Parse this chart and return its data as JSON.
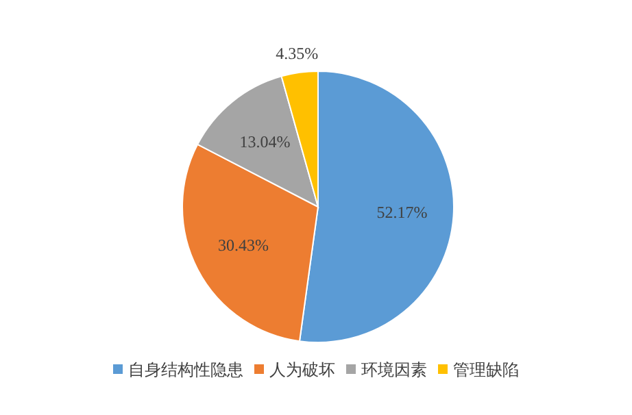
{
  "chart_data": {
    "type": "pie",
    "categories": [
      "自身结构性隐患",
      "人为破坏",
      "环境因素",
      "管理缺陷"
    ],
    "values": [
      52.17,
      30.43,
      13.04,
      4.35
    ],
    "colors": [
      "#5b9bd5",
      "#ed7d31",
      "#a5a5a5",
      "#ffc000"
    ],
    "value_labels": [
      "52.17%",
      "30.43%",
      "13.04%",
      "4.35%"
    ],
    "legend": "bottom"
  }
}
